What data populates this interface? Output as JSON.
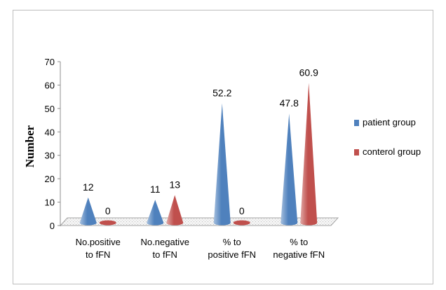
{
  "chart_data": {
    "type": "bar",
    "title": "",
    "xlabel": "",
    "ylabel": "Number",
    "ylim": [
      0,
      70
    ],
    "yticks": [
      0,
      10,
      20,
      30,
      40,
      50,
      60,
      70
    ],
    "categories": [
      [
        "No.positive",
        "to fFN"
      ],
      [
        "No.negative",
        "to fFN"
      ],
      [
        "% to",
        "positive fFN"
      ],
      [
        "% to",
        "negative fFN"
      ]
    ],
    "series": [
      {
        "name": "patient group",
        "color": "#4f81bd",
        "values": [
          12,
          11,
          52.2,
          47.8
        ]
      },
      {
        "name": "conterol group",
        "color": "#c0504d",
        "values": [
          0,
          13,
          0,
          60.9
        ]
      }
    ],
    "data_labels": [
      [
        "12",
        "11",
        "52.2",
        "47.8"
      ],
      [
        "0",
        "13",
        "0",
        "60.9"
      ]
    ],
    "legend_position": "right",
    "grid": false,
    "mark_shape": "cone"
  }
}
